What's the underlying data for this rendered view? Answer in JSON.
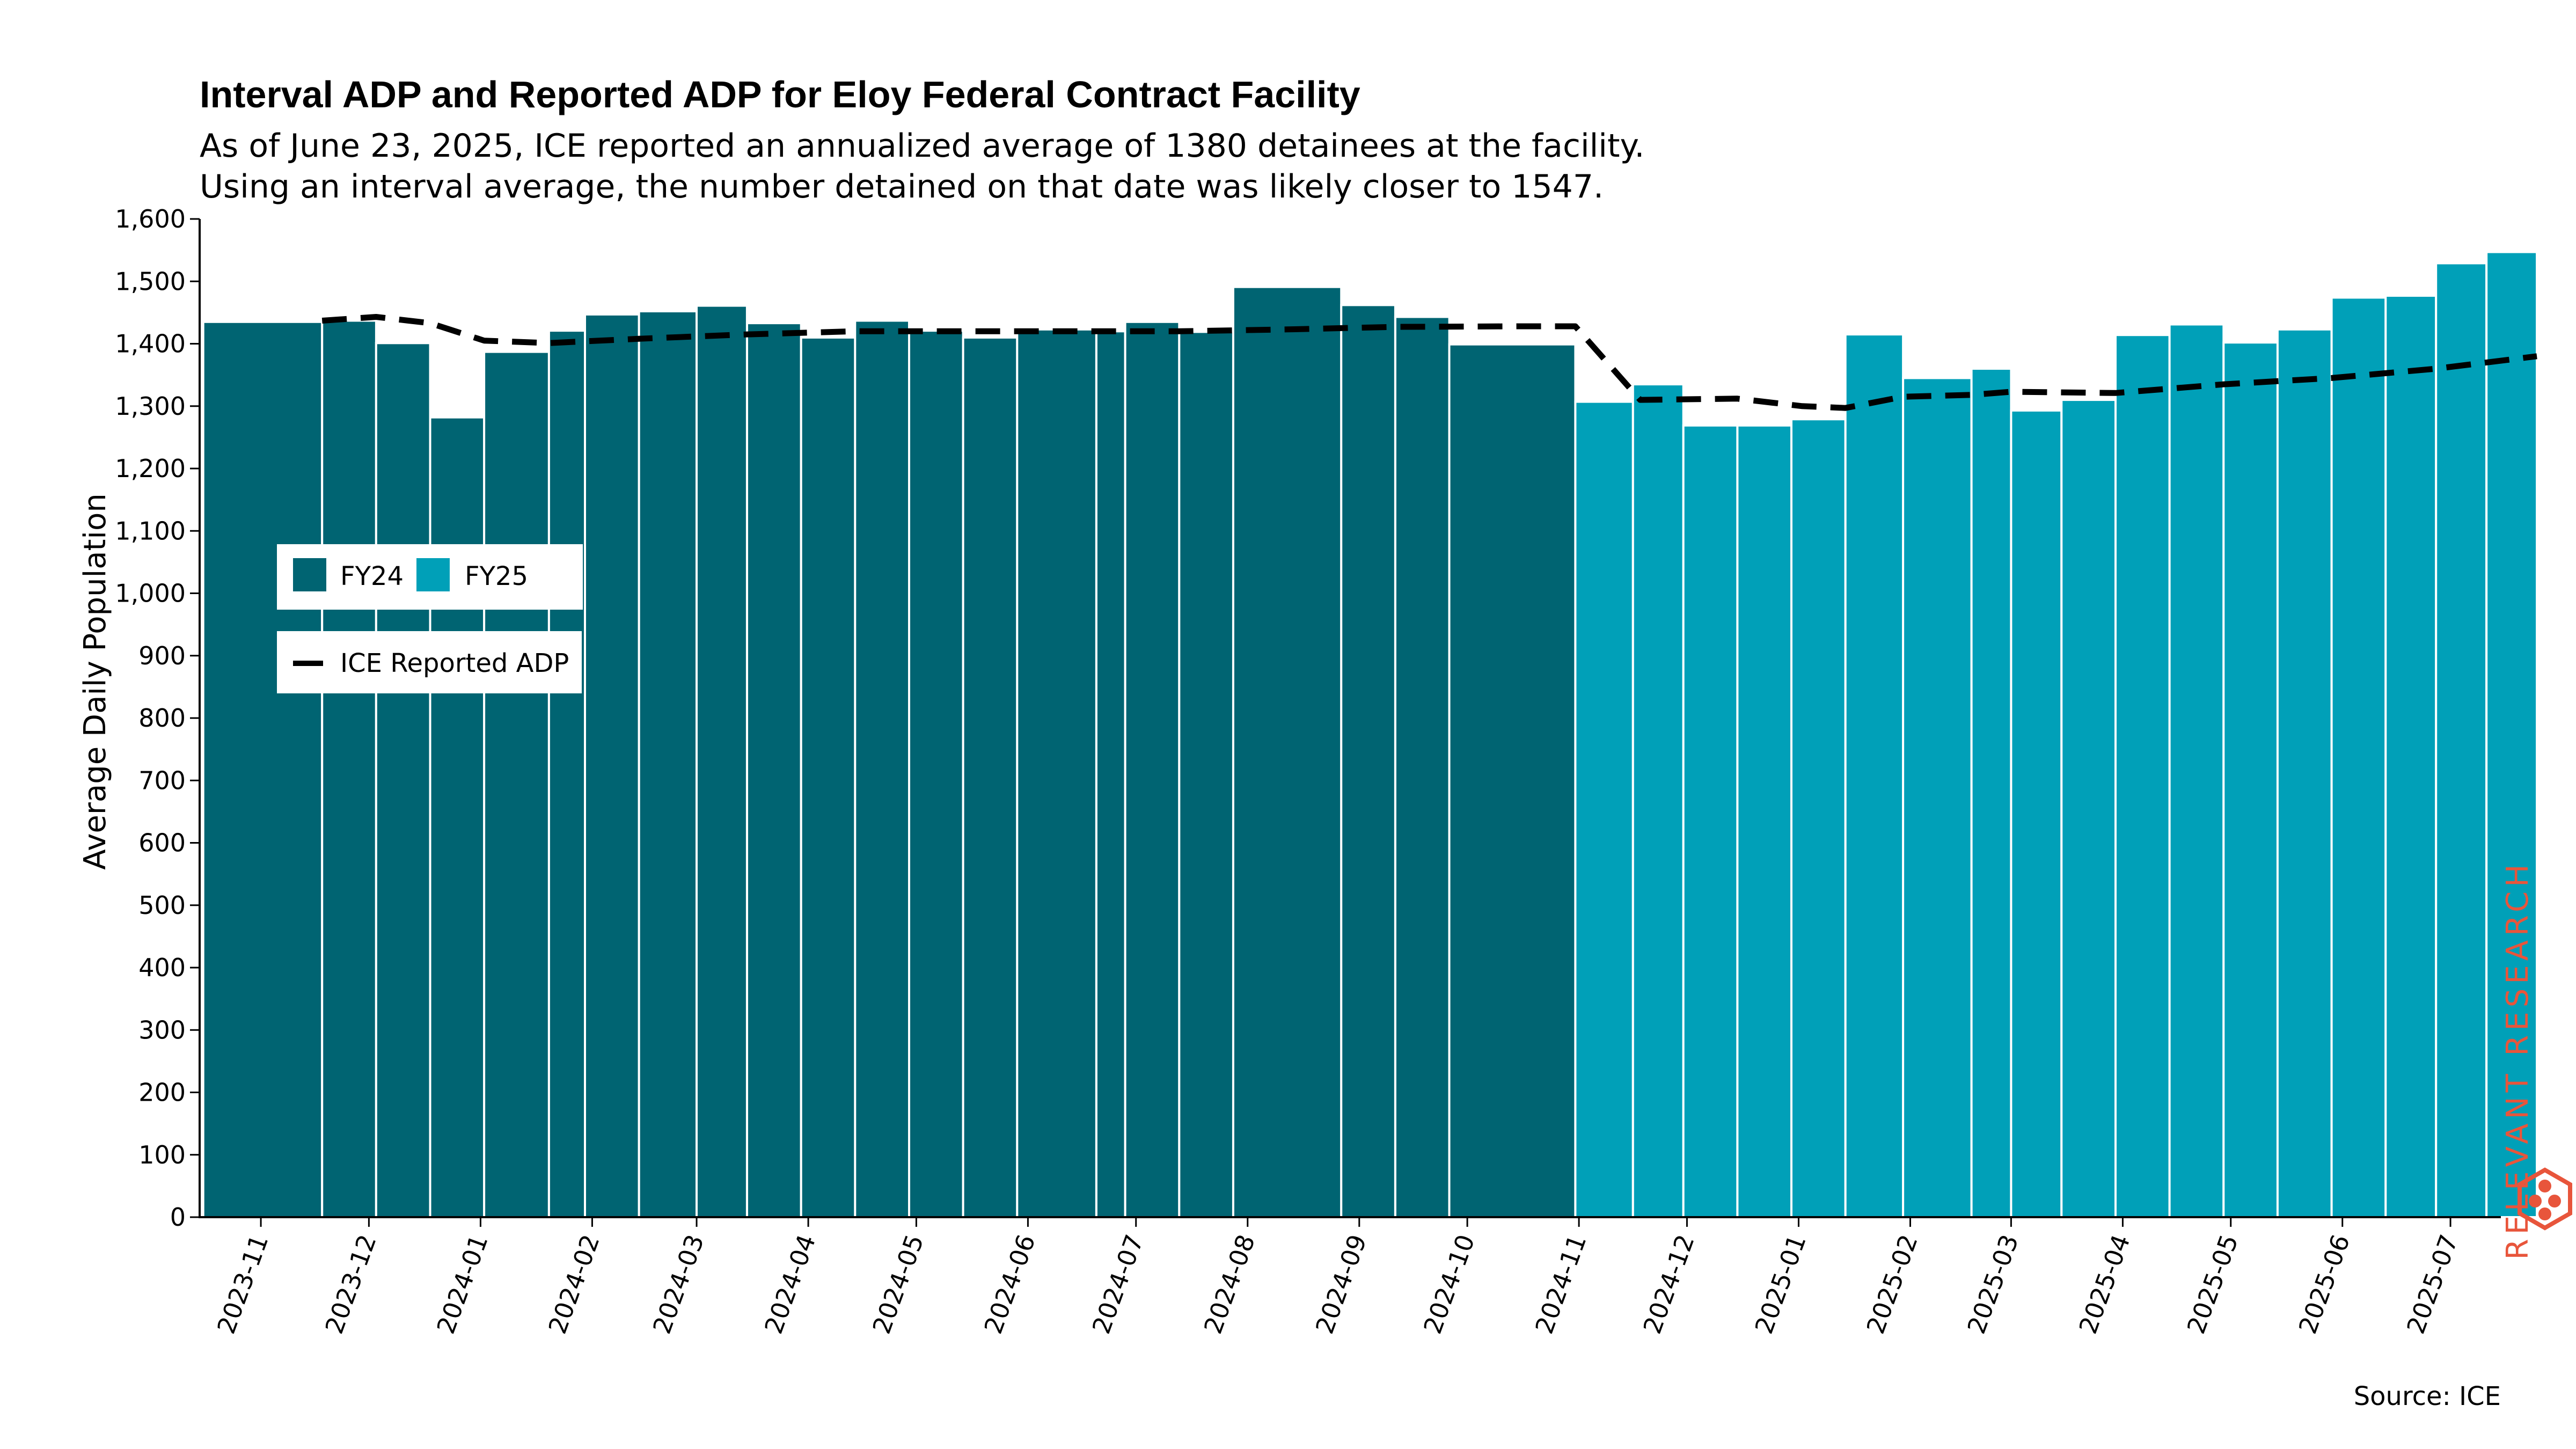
{
  "chart_data": {
    "type": "bar",
    "title": "Interval ADP and Reported ADP for Eloy Federal Contract Facility",
    "subtitle_lines": [
      "As of June 23, 2025, ICE reported an annualized average of 1380 detainees at the facility.",
      "Using an interval average, the number detained on that date was likely closer to 1547."
    ],
    "xlabel": "",
    "ylabel": "Average Daily Population",
    "ylim": [
      0,
      1600
    ],
    "y_ticks": [
      0,
      100,
      200,
      300,
      400,
      500,
      600,
      700,
      800,
      900,
      1000,
      1100,
      1200,
      1300,
      1400,
      1500,
      1600
    ],
    "y_tick_labels": [
      "0",
      "100",
      "200",
      "300",
      "400",
      "500",
      "600",
      "700",
      "800",
      "900",
      "1,000",
      "1,100",
      "1,200",
      "1,300",
      "1,400",
      "1,500",
      "1,600"
    ],
    "x_domain": [
      "2023-10-15",
      "2025-07-15"
    ],
    "x_tick_dates": [
      "2023-11-01",
      "2023-12-01",
      "2024-01-01",
      "2024-02-01",
      "2024-03-01",
      "2024-04-01",
      "2024-05-01",
      "2024-06-01",
      "2024-07-01",
      "2024-08-01",
      "2024-09-01",
      "2024-10-01",
      "2024-11-01",
      "2024-12-01",
      "2025-01-01",
      "2025-02-01",
      "2025-03-01",
      "2025-04-01",
      "2025-05-01",
      "2025-06-01",
      "2025-07-01"
    ],
    "x_tick_labels": [
      "2023-11",
      "2023-12",
      "2024-01",
      "2024-02",
      "2024-03",
      "2024-04",
      "2024-05",
      "2024-06",
      "2024-07",
      "2024-08",
      "2024-09",
      "2024-10",
      "2024-11",
      "2024-12",
      "2025-01",
      "2025-02",
      "2025-03",
      "2025-04",
      "2025-05",
      "2025-06",
      "2025-07"
    ],
    "bar_series": [
      {
        "name": "FY24",
        "color": "#006472",
        "bars": [
          {
            "start": "2023-10-16",
            "end": "2023-11-18",
            "value": 1435
          },
          {
            "start": "2023-11-18",
            "end": "2023-12-03",
            "value": 1437
          },
          {
            "start": "2023-12-03",
            "end": "2023-12-18",
            "value": 1401
          },
          {
            "start": "2023-12-18",
            "end": "2024-01-02",
            "value": 1282
          },
          {
            "start": "2024-01-02",
            "end": "2024-01-20",
            "value": 1387
          },
          {
            "start": "2024-01-20",
            "end": "2024-01-30",
            "value": 1421
          },
          {
            "start": "2024-01-30",
            "end": "2024-02-14",
            "value": 1447
          },
          {
            "start": "2024-02-14",
            "end": "2024-03-01",
            "value": 1452
          },
          {
            "start": "2024-03-01",
            "end": "2024-03-15",
            "value": 1461
          },
          {
            "start": "2024-03-15",
            "end": "2024-03-30",
            "value": 1433
          },
          {
            "start": "2024-03-30",
            "end": "2024-04-14",
            "value": 1410
          },
          {
            "start": "2024-04-14",
            "end": "2024-04-29",
            "value": 1437
          },
          {
            "start": "2024-04-29",
            "end": "2024-05-14",
            "value": 1421
          },
          {
            "start": "2024-05-14",
            "end": "2024-05-29",
            "value": 1410
          },
          {
            "start": "2024-05-29",
            "end": "2024-06-20",
            "value": 1423
          },
          {
            "start": "2024-06-20",
            "end": "2024-06-28",
            "value": 1420
          },
          {
            "start": "2024-06-28",
            "end": "2024-07-13",
            "value": 1435
          },
          {
            "start": "2024-07-13",
            "end": "2024-07-28",
            "value": 1419
          },
          {
            "start": "2024-07-28",
            "end": "2024-08-27",
            "value": 1491
          },
          {
            "start": "2024-08-27",
            "end": "2024-09-11",
            "value": 1462
          },
          {
            "start": "2024-09-11",
            "end": "2024-09-26",
            "value": 1443
          },
          {
            "start": "2024-09-26",
            "end": "2024-10-31",
            "value": 1399
          }
        ]
      },
      {
        "name": "FY25",
        "color": "#00a0b8",
        "bars": [
          {
            "start": "2024-10-31",
            "end": "2024-11-16",
            "value": 1307
          },
          {
            "start": "2024-11-16",
            "end": "2024-11-30",
            "value": 1335
          },
          {
            "start": "2024-11-30",
            "end": "2024-12-15",
            "value": 1269
          },
          {
            "start": "2024-12-15",
            "end": "2024-12-30",
            "value": 1269
          },
          {
            "start": "2024-12-30",
            "end": "2025-01-14",
            "value": 1279
          },
          {
            "start": "2025-01-14",
            "end": "2025-01-30",
            "value": 1415
          },
          {
            "start": "2025-01-30",
            "end": "2025-02-18",
            "value": 1345
          },
          {
            "start": "2025-02-18",
            "end": "2025-03-01",
            "value": 1360
          },
          {
            "start": "2025-03-01",
            "end": "2025-03-15",
            "value": 1293
          },
          {
            "start": "2025-03-15",
            "end": "2025-03-30",
            "value": 1310
          },
          {
            "start": "2025-03-30",
            "end": "2025-04-14",
            "value": 1414
          },
          {
            "start": "2025-04-14",
            "end": "2025-04-29",
            "value": 1431
          },
          {
            "start": "2025-04-29",
            "end": "2025-05-14",
            "value": 1402
          },
          {
            "start": "2025-05-14",
            "end": "2025-05-29",
            "value": 1423
          },
          {
            "start": "2025-05-29",
            "end": "2025-06-13",
            "value": 1474
          },
          {
            "start": "2025-06-13",
            "end": "2025-06-27",
            "value": 1477
          },
          {
            "start": "2025-06-27",
            "end": "2025-07-11",
            "value": 1529
          },
          {
            "start": "2025-07-11",
            "end": "2025-07-25",
            "value": 1547
          }
        ]
      }
    ],
    "line_series": {
      "name": "ICE Reported ADP",
      "color": "#000000",
      "style": "dashed",
      "points": [
        {
          "date": "2023-11-18",
          "value": 1437
        },
        {
          "date": "2023-12-03",
          "value": 1443
        },
        {
          "date": "2023-12-18",
          "value": 1433
        },
        {
          "date": "2024-01-02",
          "value": 1405
        },
        {
          "date": "2024-01-20",
          "value": 1401
        },
        {
          "date": "2024-02-14",
          "value": 1408
        },
        {
          "date": "2024-03-15",
          "value": 1415
        },
        {
          "date": "2024-04-14",
          "value": 1420
        },
        {
          "date": "2024-05-14",
          "value": 1420
        },
        {
          "date": "2024-06-13",
          "value": 1420
        },
        {
          "date": "2024-07-13",
          "value": 1420
        },
        {
          "date": "2024-08-12",
          "value": 1423
        },
        {
          "date": "2024-09-11",
          "value": 1427
        },
        {
          "date": "2024-10-16",
          "value": 1428
        },
        {
          "date": "2024-10-31",
          "value": 1428
        },
        {
          "date": "2024-11-18",
          "value": 1310
        },
        {
          "date": "2024-12-15",
          "value": 1312
        },
        {
          "date": "2025-01-02",
          "value": 1300
        },
        {
          "date": "2025-01-14",
          "value": 1297
        },
        {
          "date": "2025-01-30",
          "value": 1315
        },
        {
          "date": "2025-02-18",
          "value": 1318
        },
        {
          "date": "2025-03-01",
          "value": 1323
        },
        {
          "date": "2025-03-30",
          "value": 1321
        },
        {
          "date": "2025-04-29",
          "value": 1335
        },
        {
          "date": "2025-05-29",
          "value": 1345
        },
        {
          "date": "2025-06-27",
          "value": 1360
        },
        {
          "date": "2025-07-11",
          "value": 1370
        },
        {
          "date": "2025-07-25",
          "value": 1380
        }
      ]
    },
    "legend": {
      "bars": [
        {
          "label": "FY24",
          "color": "#006472"
        },
        {
          "label": "FY25",
          "color": "#00a0b8"
        }
      ],
      "line": {
        "label": "ICE Reported ADP"
      },
      "placement": "center-left"
    },
    "source": "Source: ICE",
    "watermark_text": "RELEVANT RESEARCH",
    "watermark_color": "#e8553b",
    "grid": false
  }
}
